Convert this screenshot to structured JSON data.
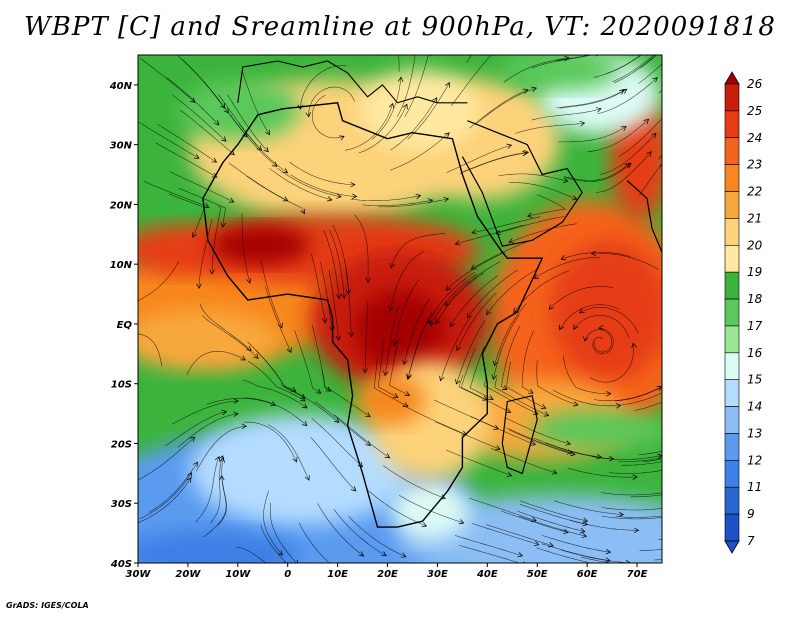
{
  "title": "WBPT [C] and Sreamline at 900hPa, VT: 2020091818",
  "credit": "GrADS: IGES/COLA",
  "map": {
    "lat_ticks": [
      "40N",
      "30N",
      "20N",
      "10N",
      "EQ",
      "10S",
      "20S",
      "30S",
      "40S"
    ],
    "lon_ticks": [
      "30W",
      "20W",
      "10W",
      "0",
      "10E",
      "20E",
      "30E",
      "40E",
      "50E",
      "60E",
      "70E"
    ],
    "lat_range": [
      -40,
      45
    ],
    "lon_range": [
      -30,
      75
    ]
  },
  "colorbar": {
    "labels": [
      "26",
      "25",
      "24",
      "23",
      "22",
      "21",
      "20",
      "19",
      "18",
      "17",
      "16",
      "15",
      "14",
      "13",
      "12",
      "11",
      "9",
      "7"
    ],
    "colors": [
      "#a50000",
      "#c81e0a",
      "#e63c14",
      "#f5641e",
      "#f7871e",
      "#f7a83c",
      "#fcd27a",
      "#ffe9a0",
      "#3cb43c",
      "#5ac85a",
      "#9be695",
      "#dcfaf5",
      "#b4dcff",
      "#8cbef5",
      "#5a9bf0",
      "#3c7fe6",
      "#2866d2",
      "#1e50c8"
    ]
  },
  "field": {
    "regions": [
      {
        "name": "tropical-hot-core",
        "color": "#c81e0a"
      },
      {
        "name": "sahel-belt",
        "color": "#e63c14"
      },
      {
        "name": "atlantic-warm",
        "color": "#f7871e"
      },
      {
        "name": "indian-ocean-warm",
        "color": "#f5641e"
      },
      {
        "name": "sahara-desert",
        "color": "#fcd27a"
      },
      {
        "name": "southern-ocean",
        "color": "#5a9bf0"
      },
      {
        "name": "subtropical-green",
        "color": "#5ac85a"
      }
    ]
  }
}
